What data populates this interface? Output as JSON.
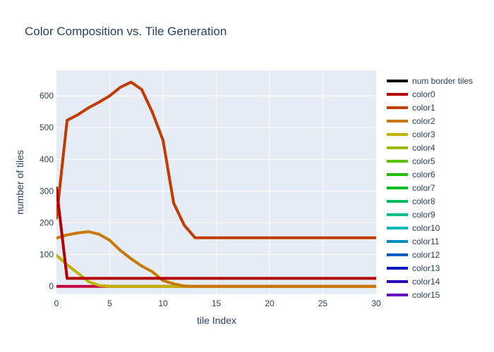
{
  "chart_data": {
    "type": "line",
    "title": "Color Composition vs. Tile Generation",
    "xlabel": "tile Index",
    "ylabel": "number of tiles",
    "xlim": [
      0,
      30
    ],
    "ylim": [
      -25,
      680
    ],
    "xticks": [
      0,
      5,
      10,
      15,
      20,
      25,
      30
    ],
    "yticks": [
      0,
      100,
      200,
      300,
      400,
      500,
      600
    ],
    "grid": true,
    "legend_position": "right",
    "series": [
      {
        "name": "num border tiles",
        "color": "#000000",
        "x": [],
        "y": []
      },
      {
        "name": "color0",
        "color": "#b30000",
        "x": [
          0,
          1,
          2,
          3,
          4,
          5,
          6,
          7,
          8,
          9,
          10,
          11,
          12,
          13,
          14,
          15,
          16,
          17,
          18,
          19,
          20,
          21,
          22,
          23,
          24,
          25,
          26,
          27,
          28,
          29,
          30
        ],
        "y": [
          310,
          25,
          25,
          25,
          25,
          25,
          25,
          25,
          25,
          25,
          25,
          25,
          25,
          25,
          25,
          25,
          25,
          25,
          25,
          25,
          25,
          25,
          25,
          25,
          25,
          25,
          25,
          25,
          25,
          25,
          25
        ]
      },
      {
        "name": "color1",
        "color": "#c23b00",
        "x": [
          0,
          1,
          2,
          3,
          4,
          5,
          6,
          7,
          8,
          9,
          10,
          11,
          12,
          13,
          14,
          15,
          16,
          17,
          18,
          19,
          20,
          21,
          22,
          23,
          24,
          25,
          26,
          27,
          28,
          29,
          30
        ],
        "y": [
          215,
          523,
          540,
          562,
          580,
          600,
          627,
          643,
          620,
          548,
          460,
          262,
          192,
          153,
          153,
          153,
          153,
          153,
          153,
          153,
          153,
          153,
          153,
          153,
          153,
          153,
          153,
          153,
          153,
          153,
          153
        ]
      },
      {
        "name": "color2",
        "color": "#c87800",
        "x": [
          0,
          1,
          2,
          3,
          4,
          5,
          6,
          7,
          8,
          9,
          10,
          11,
          12,
          13,
          14,
          15,
          16,
          17,
          18,
          19,
          20,
          21,
          22,
          23,
          24,
          25,
          26,
          27,
          28,
          29,
          30
        ],
        "y": [
          152,
          162,
          168,
          172,
          164,
          145,
          113,
          87,
          64,
          46,
          18,
          8,
          1,
          0,
          0,
          0,
          0,
          0,
          0,
          0,
          0,
          0,
          0,
          0,
          0,
          0,
          0,
          0,
          0,
          0,
          0
        ]
      },
      {
        "name": "color3",
        "color": "#c2b200",
        "x": [
          0,
          1,
          2,
          3,
          4,
          5,
          6,
          7,
          8,
          9,
          10,
          11,
          12,
          13,
          14,
          15,
          16,
          17,
          18,
          19,
          20,
          21,
          22,
          23,
          24,
          25,
          26,
          27,
          28,
          29,
          30
        ],
        "y": [
          98,
          68,
          42,
          15,
          3,
          0,
          0,
          0,
          0,
          0,
          0,
          0,
          0,
          0,
          0,
          0,
          0,
          0,
          0,
          0,
          0,
          0,
          0,
          0,
          0,
          0,
          0,
          0,
          0,
          0,
          0
        ]
      },
      {
        "name": "color4",
        "color": "#9ab800",
        "x": [],
        "y": []
      },
      {
        "name": "color5",
        "color": "#5cc000",
        "x": [],
        "y": []
      },
      {
        "name": "color6",
        "color": "#22bb00",
        "x": [],
        "y": []
      },
      {
        "name": "color7",
        "color": "#00bb2a",
        "x": [],
        "y": []
      },
      {
        "name": "color8",
        "color": "#00ba5e",
        "x": [],
        "y": []
      },
      {
        "name": "color9",
        "color": "#00bc8c",
        "x": [],
        "y": []
      },
      {
        "name": "color10",
        "color": "#00b8b8",
        "x": [],
        "y": []
      },
      {
        "name": "color11",
        "color": "#0088c0",
        "x": [],
        "y": []
      },
      {
        "name": "color12",
        "color": "#0058c0",
        "x": [],
        "y": []
      },
      {
        "name": "color13",
        "color": "#0018c0",
        "x": [],
        "y": []
      },
      {
        "name": "color14",
        "color": "#2800b8",
        "x": [],
        "y": []
      },
      {
        "name": "color15",
        "color": "#6600c8",
        "x": [],
        "y": []
      },
      {
        "name": "",
        "color": "#c0003a",
        "x": [
          0,
          1,
          2,
          3,
          4,
          5,
          6,
          7,
          8,
          9,
          10,
          11,
          12,
          13,
          14,
          15,
          16,
          17,
          18,
          19,
          20,
          21,
          22,
          23,
          24,
          25,
          26,
          27,
          28,
          29,
          30
        ],
        "y": [
          0,
          0,
          0,
          0,
          0,
          0,
          0,
          0,
          0,
          0,
          0,
          0,
          0,
          0,
          0,
          0,
          0,
          0,
          0,
          0,
          0,
          0,
          0,
          0,
          0,
          0,
          0,
          0,
          0,
          0,
          0
        ]
      }
    ]
  }
}
